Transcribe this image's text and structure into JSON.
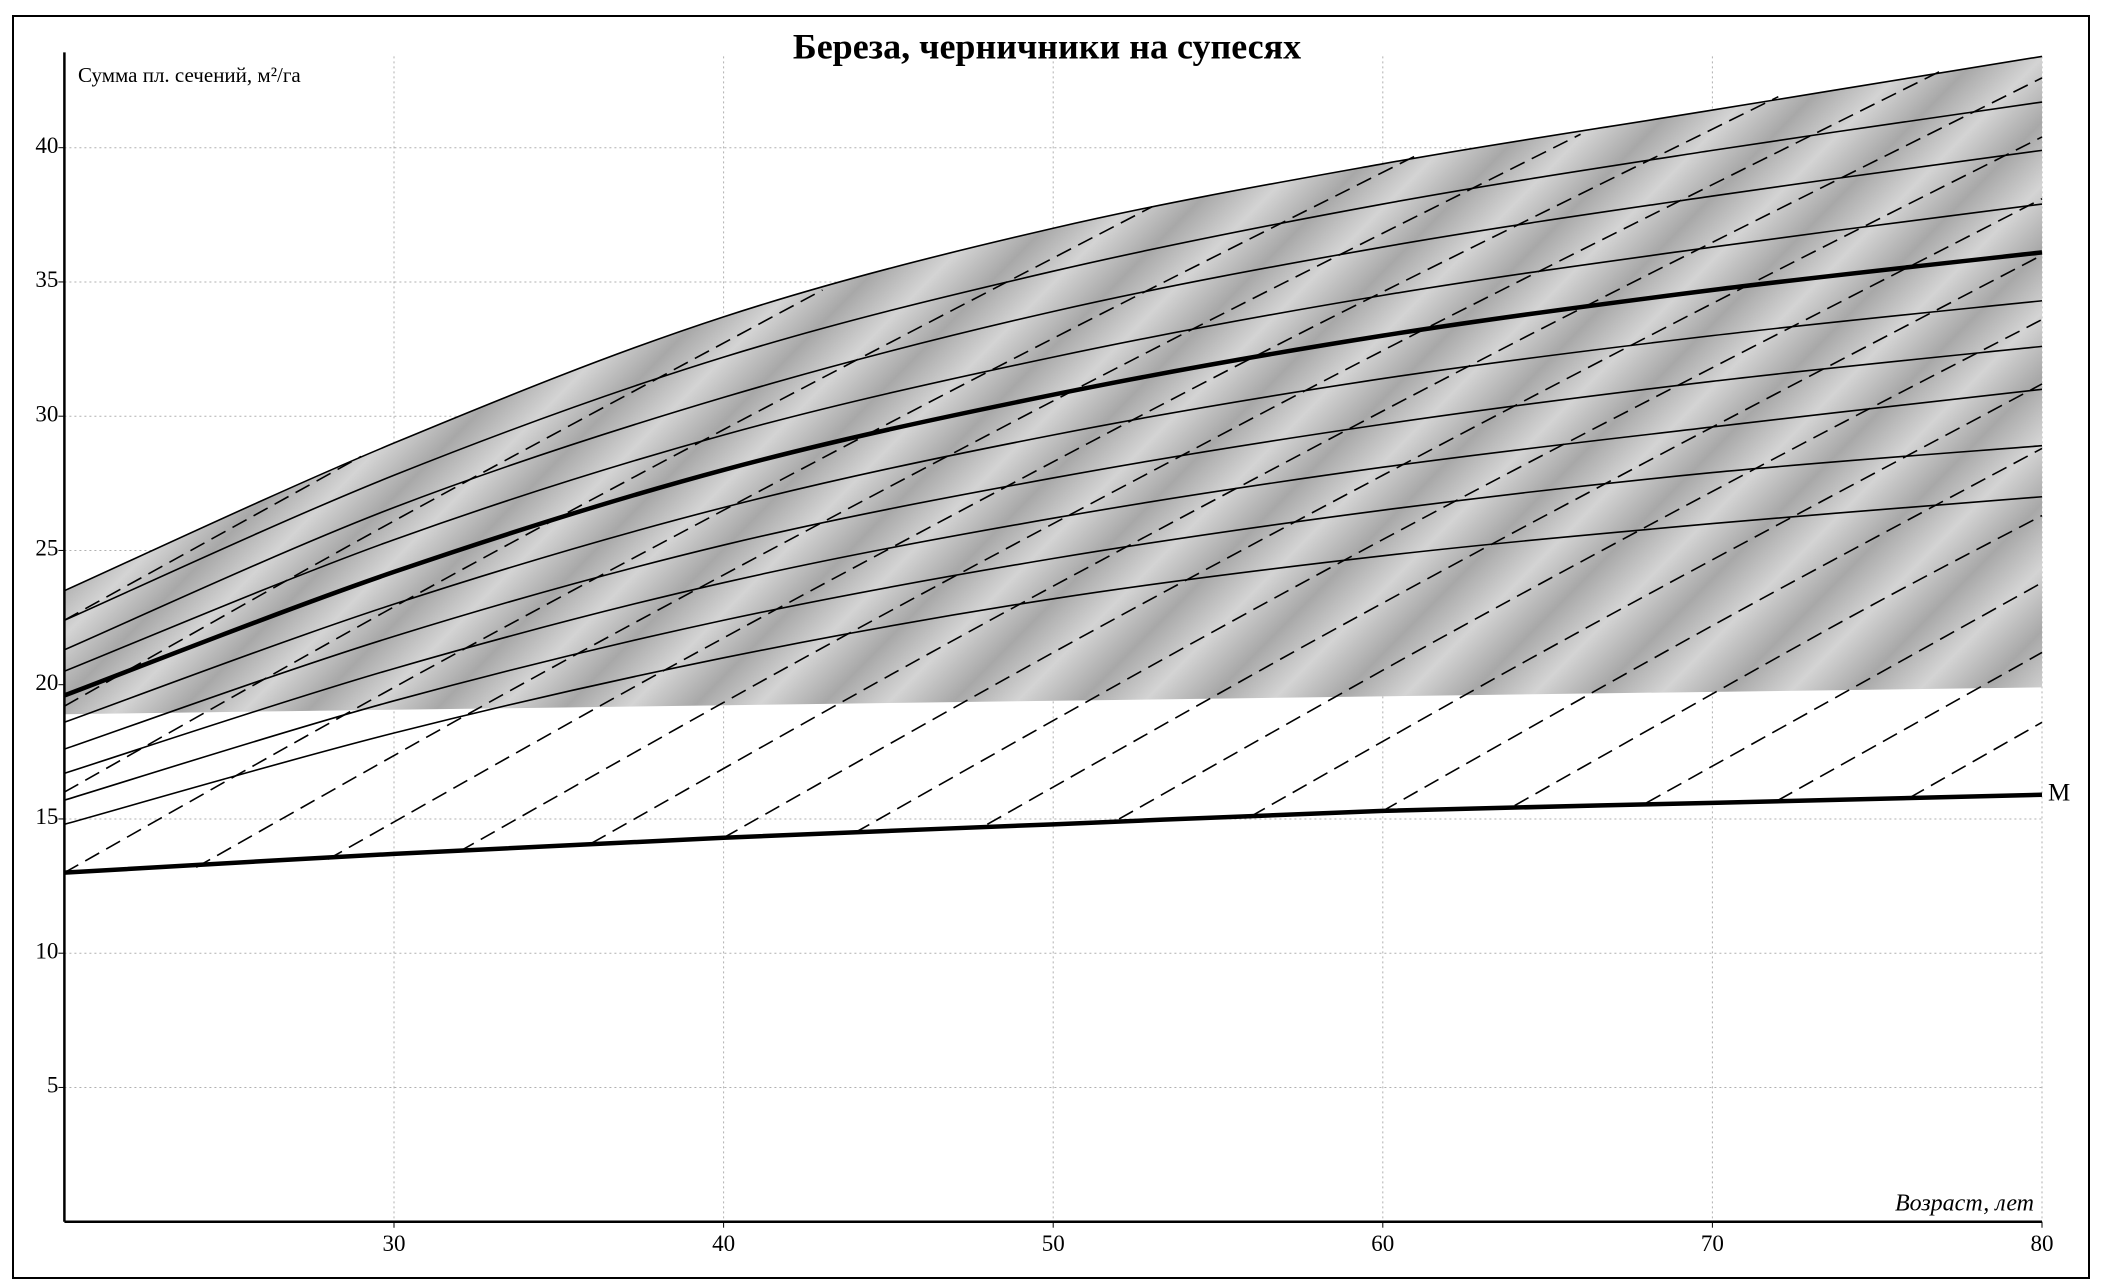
{
  "chart_data": {
    "type": "line",
    "title": "Береза, черничники на супесях",
    "ylabel": "Сумма пл. сечений, м²/га",
    "xlabel": "Возраст, лет",
    "xlim": [
      20,
      80
    ],
    "xticks": [
      30,
      40,
      50,
      60,
      70,
      80
    ],
    "ylim": [
      0,
      43.4
    ],
    "yticks": [
      5,
      10,
      15,
      20,
      25,
      30,
      35,
      40
    ],
    "grid": true,
    "color": "#000000",
    "shaded_area": {
      "x": [
        20,
        80
      ],
      "lower": [
        18.9,
        19.9
      ]
    },
    "series": [
      {
        "x": [
          20,
          30,
          40,
          50,
          60,
          70,
          80
        ],
        "values": [
          23.5,
          29.0,
          33.7,
          37.0,
          39.4,
          41.4,
          43.4
        ],
        "style": "solid"
      },
      {
        "x": [
          20,
          30,
          40,
          50,
          60,
          70,
          80
        ],
        "values": [
          22.4,
          27.8,
          32.2,
          35.4,
          37.9,
          39.9,
          41.7
        ],
        "style": "solid"
      },
      {
        "x": [
          20,
          30,
          40,
          50,
          60,
          70,
          80
        ],
        "values": [
          21.3,
          26.6,
          30.7,
          33.9,
          36.3,
          38.2,
          39.9
        ],
        "style": "solid"
      },
      {
        "x": [
          20,
          30,
          40,
          50,
          60,
          70,
          80
        ],
        "values": [
          20.5,
          25.4,
          29.3,
          32.2,
          34.5,
          36.3,
          37.9
        ],
        "style": "solid"
      },
      {
        "x": [
          20,
          30,
          40,
          50,
          60,
          70,
          80
        ],
        "values": [
          19.6,
          24.2,
          28.0,
          30.8,
          33.0,
          34.7,
          36.1
        ],
        "style": "bold"
      },
      {
        "x": [
          20,
          30,
          40,
          50,
          60,
          70,
          80
        ],
        "values": [
          18.6,
          23.0,
          26.6,
          29.3,
          31.4,
          33.0,
          34.3
        ],
        "style": "solid"
      },
      {
        "x": [
          20,
          30,
          40,
          50,
          60,
          70,
          80
        ],
        "values": [
          17.6,
          21.8,
          25.2,
          27.7,
          29.7,
          31.3,
          32.6
        ],
        "style": "solid"
      },
      {
        "x": [
          20,
          30,
          40,
          50,
          60,
          70,
          80
        ],
        "values": [
          16.7,
          20.6,
          23.8,
          26.2,
          28.1,
          29.6,
          31.0
        ],
        "style": "solid"
      },
      {
        "x": [
          20,
          30,
          40,
          50,
          60,
          70,
          80
        ],
        "values": [
          15.7,
          19.4,
          22.4,
          24.7,
          26.5,
          27.9,
          28.9
        ],
        "style": "solid"
      },
      {
        "x": [
          20,
          30,
          40,
          50,
          60,
          70,
          80
        ],
        "values": [
          14.8,
          18.2,
          21.0,
          23.2,
          24.8,
          26.0,
          27.0
        ],
        "style": "solid"
      },
      {
        "x": [
          20,
          30,
          40,
          50,
          60,
          70,
          80
        ],
        "values": [
          13.0,
          13.7,
          14.3,
          14.8,
          15.3,
          15.6,
          15.9
        ],
        "style": "bold",
        "label": "M"
      },
      {
        "x": [
          20,
          29
        ],
        "values": [
          22.4,
          28.5
        ],
        "style": "dashed"
      },
      {
        "x": [
          20,
          30,
          43
        ],
        "values": [
          19.2,
          26.1,
          34.7
        ],
        "style": "dashed"
      },
      {
        "x": [
          20,
          30,
          40,
          53
        ],
        "values": [
          16.0,
          22.9,
          29.5,
          37.8
        ],
        "style": "dashed"
      },
      {
        "x": [
          20,
          30,
          40,
          50,
          61
        ],
        "values": [
          13.0,
          19.9,
          26.5,
          32.9,
          39.7
        ],
        "style": "dashed"
      },
      {
        "x": [
          24,
          34,
          44,
          54,
          66
        ],
        "values": [
          13.2,
          20.1,
          26.7,
          33.1,
          40.5
        ],
        "style": "dashed"
      },
      {
        "x": [
          28,
          38,
          48,
          58,
          72
        ],
        "values": [
          13.5,
          20.4,
          27.0,
          33.4,
          41.9
        ],
        "style": "dashed"
      },
      {
        "x": [
          32,
          42,
          52,
          62,
          77
        ],
        "values": [
          13.8,
          20.7,
          27.3,
          33.7,
          42.9
        ],
        "style": "dashed"
      },
      {
        "x": [
          36,
          46,
          56,
          66,
          80
        ],
        "values": [
          14.1,
          21.0,
          27.6,
          34.0,
          42.6
        ],
        "style": "dashed"
      },
      {
        "x": [
          40,
          50,
          60,
          70,
          80
        ],
        "values": [
          14.3,
          21.2,
          27.8,
          34.2,
          40.4
        ],
        "style": "dashed"
      },
      {
        "x": [
          44,
          54,
          64,
          80
        ],
        "values": [
          14.5,
          21.4,
          28.0,
          38.1
        ],
        "style": "dashed"
      },
      {
        "x": [
          48,
          58,
          68,
          80
        ],
        "values": [
          14.8,
          21.7,
          28.3,
          36.0
        ],
        "style": "dashed"
      },
      {
        "x": [
          52,
          62,
          72,
          80
        ],
        "values": [
          15.0,
          21.9,
          28.5,
          33.6
        ],
        "style": "dashed"
      },
      {
        "x": [
          56,
          66,
          80
        ],
        "values": [
          15.1,
          22.0,
          31.2
        ],
        "style": "dashed"
      },
      {
        "x": [
          60,
          70,
          80
        ],
        "values": [
          15.3,
          22.2,
          28.8
        ],
        "style": "dashed"
      },
      {
        "x": [
          64,
          74,
          80
        ],
        "values": [
          15.5,
          22.4,
          26.3
        ],
        "style": "dashed"
      },
      {
        "x": [
          68,
          80
        ],
        "values": [
          15.6,
          23.8
        ],
        "style": "dashed"
      },
      {
        "x": [
          72,
          80
        ],
        "values": [
          15.7,
          21.2
        ],
        "style": "dashed"
      },
      {
        "x": [
          76,
          80
        ],
        "values": [
          15.8,
          18.6
        ],
        "style": "dashed"
      }
    ]
  }
}
